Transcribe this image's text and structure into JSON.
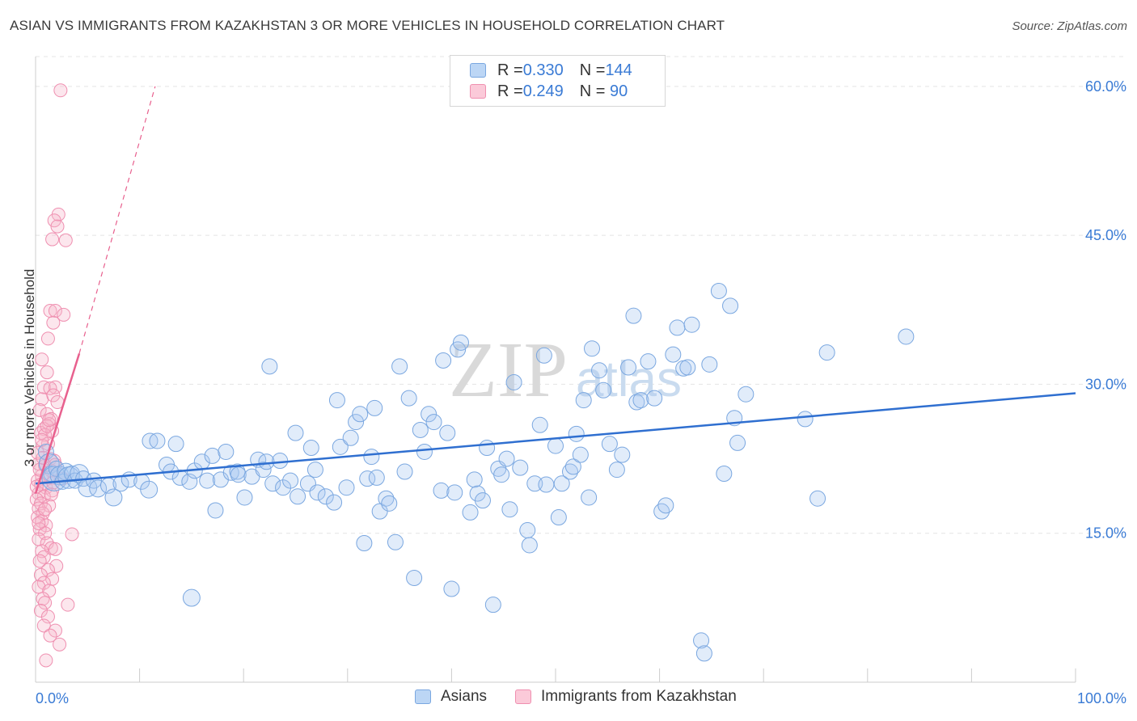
{
  "title": "ASIAN VS IMMIGRANTS FROM KAZAKHSTAN 3 OR MORE VEHICLES IN HOUSEHOLD CORRELATION CHART",
  "source": "Source: ZipAtlas.com",
  "watermark": {
    "zip": "ZIP",
    "atlas": "atlas"
  },
  "legend": {
    "rows": [
      {
        "r_label": "R = ",
        "r_value": "0.330",
        "n_label": "N = ",
        "n_value": "144",
        "color": "#a8c8f0"
      },
      {
        "r_label": "R = ",
        "r_value": "0.249",
        "n_label": "N = ",
        "n_value": " 90",
        "color": "#f7b8cc"
      }
    ]
  },
  "bottom_legend": [
    {
      "label": "Asians",
      "color": "#a8c8f0"
    },
    {
      "label": "Immigrants from Kazakhstan",
      "color": "#f7b8cc"
    }
  ],
  "colors": {
    "blue_fill": "rgba(168,200,240,0.35)",
    "blue_stroke": "#7aa7e0",
    "blue_line": "#2f6fd0",
    "pink_fill": "rgba(247,184,204,0.35)",
    "pink_stroke": "#ef8fb0",
    "pink_line": "#e8608e",
    "grid": "#e4e4e4",
    "axis_text": "#3a7bd5"
  },
  "chart_data": {
    "type": "scatter",
    "title": "ASIAN VS IMMIGRANTS FROM KAZAKHSTAN 3 OR MORE VEHICLES IN HOUSEHOLD CORRELATION CHART",
    "xlabel": "",
    "ylabel": "3 or more Vehicles in Household",
    "xlim": [
      0,
      100
    ],
    "ylim": [
      0,
      63
    ],
    "x_tick_labels": [
      "0.0%",
      "100.0%"
    ],
    "y_ticks": [
      15,
      30,
      45,
      60
    ],
    "y_tick_labels": [
      "15.0%",
      "30.0%",
      "45.0%",
      "60.0%"
    ],
    "grid": true,
    "legend_position": "top-center",
    "series": [
      {
        "name": "Asians",
        "R": 0.33,
        "N": 144,
        "trend": {
          "x": [
            0,
            100
          ],
          "y": [
            20.0,
            29.1
          ],
          "style": "solid"
        },
        "points": [
          [
            1.0,
            23.2,
            1
          ],
          [
            1.3,
            22.0,
            1.3
          ],
          [
            1.5,
            21.0,
            1
          ],
          [
            1.8,
            20.5,
            1.6
          ],
          [
            2.0,
            21.5,
            1
          ],
          [
            2.3,
            20.8,
            1.2
          ],
          [
            2.6,
            20.2,
            1
          ],
          [
            2.9,
            21.2,
            1.1
          ],
          [
            3.2,
            20.6,
            1.4
          ],
          [
            3.5,
            21.0,
            1
          ],
          [
            3.8,
            20.3,
            1
          ],
          [
            4.2,
            21.0,
            1.2
          ],
          [
            4.6,
            20.5,
            1
          ],
          [
            5.0,
            19.6,
            1.2
          ],
          [
            5.6,
            20.3,
            1
          ],
          [
            6.0,
            19.5,
            1.1
          ],
          [
            7.0,
            19.8,
            1
          ],
          [
            7.5,
            18.6,
            1.1
          ],
          [
            8.2,
            20.0,
            1
          ],
          [
            9.0,
            20.4,
            1
          ],
          [
            10.2,
            20.2,
            1
          ],
          [
            10.9,
            19.4,
            1.1
          ],
          [
            11.0,
            24.3,
            1
          ],
          [
            11.7,
            24.3,
            1
          ],
          [
            12.6,
            21.9,
            1
          ],
          [
            13.0,
            21.2,
            1
          ],
          [
            13.5,
            24.0,
            1
          ],
          [
            13.9,
            20.6,
            1
          ],
          [
            14.8,
            20.2,
            1
          ],
          [
            15.0,
            8.5,
            1.1
          ],
          [
            15.3,
            21.3,
            1
          ],
          [
            16.0,
            22.2,
            1
          ],
          [
            16.5,
            20.3,
            1
          ],
          [
            17.0,
            22.8,
            1
          ],
          [
            17.3,
            17.3,
            1
          ],
          [
            17.8,
            20.4,
            1
          ],
          [
            18.3,
            23.2,
            1
          ],
          [
            18.8,
            21.1,
            1
          ],
          [
            19.4,
            21.2,
            1
          ],
          [
            19.5,
            20.9,
            1
          ],
          [
            20.1,
            18.6,
            1
          ],
          [
            20.8,
            20.7,
            1
          ],
          [
            21.4,
            22.4,
            1
          ],
          [
            21.9,
            21.4,
            1
          ],
          [
            22.2,
            22.2,
            1
          ],
          [
            22.5,
            31.8,
            1
          ],
          [
            22.8,
            20.0,
            1
          ],
          [
            23.5,
            22.3,
            1
          ],
          [
            23.8,
            19.6,
            1
          ],
          [
            24.5,
            20.3,
            1
          ],
          [
            25.0,
            25.1,
            1
          ],
          [
            25.2,
            18.7,
            1
          ],
          [
            26.2,
            20.0,
            1
          ],
          [
            26.5,
            23.6,
            1
          ],
          [
            26.9,
            21.4,
            1
          ],
          [
            27.1,
            19.1,
            1
          ],
          [
            27.9,
            18.7,
            1
          ],
          [
            28.7,
            18.1,
            1
          ],
          [
            29.0,
            28.4,
            1
          ],
          [
            29.3,
            23.7,
            1
          ],
          [
            29.9,
            19.6,
            1
          ],
          [
            30.3,
            24.6,
            1
          ],
          [
            30.8,
            26.2,
            1
          ],
          [
            31.2,
            27.0,
            1
          ],
          [
            31.6,
            14.0,
            1
          ],
          [
            31.9,
            20.5,
            1
          ],
          [
            32.3,
            22.7,
            1
          ],
          [
            32.6,
            27.6,
            1
          ],
          [
            32.8,
            20.6,
            1
          ],
          [
            33.1,
            17.2,
            1
          ],
          [
            33.7,
            18.5,
            1
          ],
          [
            34.0,
            18.0,
            1
          ],
          [
            34.6,
            14.1,
            1
          ],
          [
            35.0,
            31.8,
            1
          ],
          [
            35.5,
            21.2,
            1
          ],
          [
            35.9,
            28.6,
            1
          ],
          [
            36.4,
            10.5,
            1
          ],
          [
            37.0,
            25.4,
            1
          ],
          [
            37.4,
            23.2,
            1
          ],
          [
            37.8,
            27.0,
            1
          ],
          [
            38.3,
            26.2,
            1
          ],
          [
            39.0,
            19.3,
            1
          ],
          [
            39.2,
            32.4,
            1
          ],
          [
            39.6,
            25.1,
            1
          ],
          [
            40.0,
            9.4,
            1
          ],
          [
            40.3,
            19.1,
            1
          ],
          [
            40.6,
            33.5,
            1
          ],
          [
            40.9,
            34.2,
            1
          ],
          [
            41.8,
            17.1,
            1
          ],
          [
            42.2,
            20.4,
            1
          ],
          [
            42.5,
            19.0,
            1
          ],
          [
            43.0,
            18.3,
            1
          ],
          [
            43.4,
            23.6,
            1
          ],
          [
            44.0,
            7.8,
            1
          ],
          [
            44.5,
            21.5,
            1
          ],
          [
            44.8,
            20.9,
            1
          ],
          [
            45.3,
            22.5,
            1
          ],
          [
            45.6,
            17.4,
            1
          ],
          [
            46.0,
            30.2,
            1
          ],
          [
            46.6,
            21.6,
            1
          ],
          [
            47.3,
            15.3,
            1
          ],
          [
            47.5,
            13.8,
            1
          ],
          [
            48.0,
            20.0,
            1
          ],
          [
            48.5,
            25.9,
            1
          ],
          [
            48.9,
            32.9,
            1
          ],
          [
            49.1,
            19.9,
            1
          ],
          [
            50.0,
            23.8,
            1
          ],
          [
            50.3,
            16.6,
            1
          ],
          [
            50.6,
            20.0,
            1
          ],
          [
            51.4,
            21.2,
            1
          ],
          [
            51.7,
            21.7,
            1
          ],
          [
            52.0,
            25.0,
            1
          ],
          [
            52.4,
            22.9,
            1
          ],
          [
            52.7,
            28.4,
            1
          ],
          [
            53.2,
            18.6,
            1
          ],
          [
            53.5,
            33.6,
            1
          ],
          [
            54.2,
            31.4,
            1
          ],
          [
            54.6,
            29.4,
            1
          ],
          [
            55.2,
            24.0,
            1
          ],
          [
            55.9,
            21.4,
            1
          ],
          [
            56.4,
            22.9,
            1
          ],
          [
            57.0,
            31.7,
            1
          ],
          [
            57.5,
            36.9,
            1
          ],
          [
            57.8,
            28.2,
            1
          ],
          [
            58.2,
            28.4,
            1
          ],
          [
            58.9,
            32.3,
            1
          ],
          [
            59.5,
            28.6,
            1
          ],
          [
            60.2,
            17.2,
            1
          ],
          [
            60.6,
            17.8,
            1
          ],
          [
            61.3,
            33.0,
            1
          ],
          [
            61.7,
            35.7,
            1
          ],
          [
            62.3,
            31.6,
            1
          ],
          [
            62.7,
            31.7,
            1
          ],
          [
            63.1,
            36.0,
            1
          ],
          [
            64.0,
            4.2,
            1
          ],
          [
            64.3,
            2.9,
            1
          ],
          [
            64.8,
            32.0,
            1
          ],
          [
            65.7,
            39.4,
            1
          ],
          [
            66.2,
            21.0,
            1
          ],
          [
            66.8,
            37.9,
            1
          ],
          [
            67.2,
            26.6,
            1
          ],
          [
            67.5,
            24.1,
            1
          ],
          [
            68.3,
            29.0,
            1
          ],
          [
            74.0,
            26.5,
            1
          ],
          [
            75.2,
            18.5,
            1
          ],
          [
            76.1,
            33.2,
            1
          ],
          [
            83.7,
            34.8,
            1
          ]
        ]
      },
      {
        "name": "Immigrants from Kazakhstan",
        "R": 0.249,
        "N": 90,
        "trend": {
          "x": [
            0,
            4.2
          ],
          "y": [
            19.0,
            33.1
          ],
          "style": "solid",
          "extension": {
            "x": [
              4.2,
              11.5
            ],
            "y": [
              33.1,
              60.0
            ],
            "style": "dashed"
          }
        },
        "points": [
          [
            2.4,
            59.6
          ],
          [
            2.2,
            47.1
          ],
          [
            1.8,
            46.5
          ],
          [
            1.6,
            44.6
          ],
          [
            2.1,
            45.9
          ],
          [
            2.9,
            44.5
          ],
          [
            1.4,
            37.4
          ],
          [
            1.9,
            37.4
          ],
          [
            2.7,
            37.0
          ],
          [
            1.7,
            36.2
          ],
          [
            1.2,
            34.6
          ],
          [
            0.6,
            32.5
          ],
          [
            1.1,
            31.2
          ],
          [
            0.8,
            29.7
          ],
          [
            1.9,
            29.7
          ],
          [
            1.4,
            29.6
          ],
          [
            0.6,
            28.5
          ],
          [
            1.7,
            28.9
          ],
          [
            2.1,
            28.2
          ],
          [
            0.4,
            27.4
          ],
          [
            1.1,
            27.0
          ],
          [
            1.5,
            26.5
          ],
          [
            1.3,
            26.0
          ],
          [
            0.8,
            25.5
          ],
          [
            0.5,
            25.1
          ],
          [
            1.6,
            25.3
          ],
          [
            0.9,
            24.9
          ],
          [
            1.2,
            24.0
          ],
          [
            0.7,
            23.8
          ],
          [
            1.4,
            22.5
          ],
          [
            1.8,
            22.3
          ],
          [
            0.3,
            22.0
          ],
          [
            0.9,
            21.8
          ],
          [
            1.5,
            21.3
          ],
          [
            0.6,
            20.8
          ],
          [
            1.2,
            20.6
          ],
          [
            0.2,
            20.3
          ],
          [
            0.5,
            19.9
          ],
          [
            1.0,
            19.6
          ],
          [
            1.6,
            19.3
          ],
          [
            0.3,
            19.0
          ],
          [
            0.8,
            18.7
          ],
          [
            0.1,
            18.4
          ],
          [
            0.5,
            18.0
          ],
          [
            1.3,
            17.8
          ],
          [
            0.3,
            17.5
          ],
          [
            0.7,
            17.0
          ],
          [
            0.2,
            16.6
          ],
          [
            0.6,
            16.2
          ],
          [
            1.0,
            15.8
          ],
          [
            0.4,
            15.4
          ],
          [
            0.9,
            15.0
          ],
          [
            3.5,
            14.9
          ],
          [
            0.3,
            14.4
          ],
          [
            1.1,
            14.0
          ],
          [
            1.5,
            13.5
          ],
          [
            0.6,
            13.2
          ],
          [
            1.9,
            13.4
          ],
          [
            0.8,
            12.6
          ],
          [
            0.4,
            12.2
          ],
          [
            2.0,
            11.7
          ],
          [
            1.2,
            11.3
          ],
          [
            0.5,
            10.8
          ],
          [
            1.6,
            10.4
          ],
          [
            0.8,
            10.0
          ],
          [
            0.3,
            9.6
          ],
          [
            1.3,
            9.2
          ],
          [
            0.7,
            8.4
          ],
          [
            0.9,
            8.0
          ],
          [
            3.1,
            7.8
          ],
          [
            0.5,
            7.2
          ],
          [
            1.2,
            6.6
          ],
          [
            0.8,
            5.7
          ],
          [
            1.9,
            5.2
          ],
          [
            1.4,
            4.7
          ],
          [
            2.3,
            3.8
          ],
          [
            1.0,
            2.2
          ],
          [
            0.4,
            21.4
          ],
          [
            1.7,
            20.1
          ],
          [
            0.2,
            23.1
          ],
          [
            0.6,
            24.4
          ],
          [
            1.1,
            25.8
          ],
          [
            1.5,
            18.9
          ],
          [
            0.9,
            17.4
          ],
          [
            0.3,
            16.0
          ],
          [
            1.9,
            21.9
          ],
          [
            2.6,
            20.5
          ],
          [
            0.7,
            22.6
          ],
          [
            1.3,
            26.4
          ],
          [
            0.1,
            19.7
          ]
        ]
      }
    ]
  }
}
